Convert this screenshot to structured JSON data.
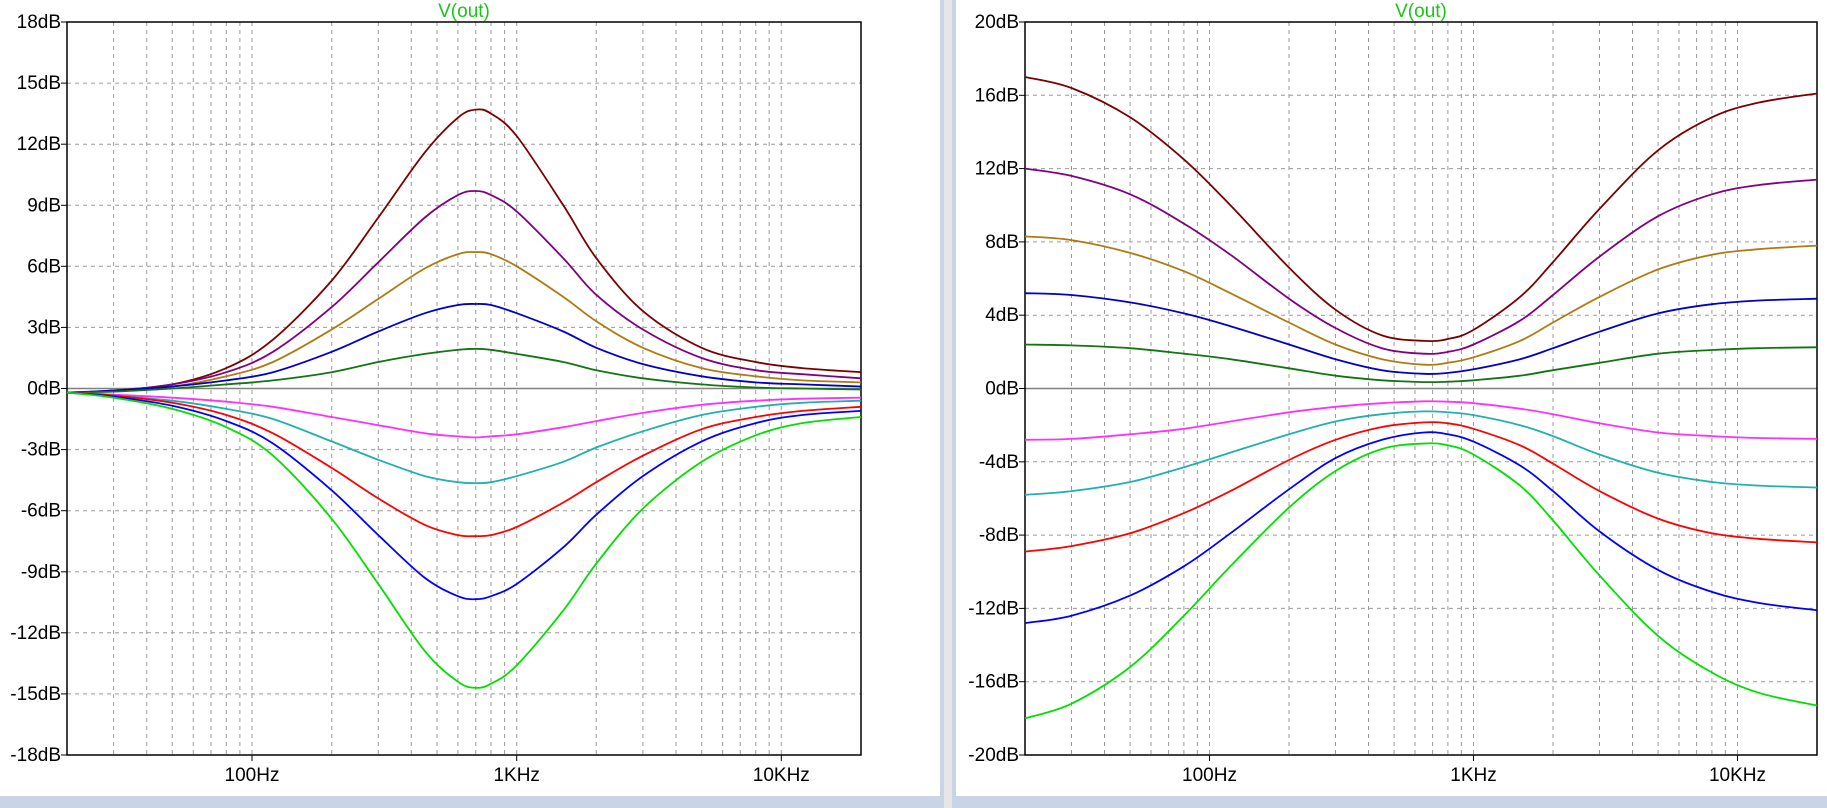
{
  "window": {
    "background_color": "#c9d5e6",
    "plot_background": "#ffffff",
    "grid_color": "#9a9a9a",
    "zero_line_color": "#808080"
  },
  "chart_data": [
    {
      "type": "line",
      "title": "V(out)",
      "title_color": "#19c519",
      "x_scale": "log",
      "xlim": [
        20,
        20000
      ],
      "ylim": [
        -18,
        18
      ],
      "x_ticks": [
        {
          "value": 100,
          "label": "100Hz"
        },
        {
          "value": 1000,
          "label": "1KHz"
        },
        {
          "value": 10000,
          "label": "10KHz"
        }
      ],
      "y_ticks": [
        {
          "value": 18,
          "label": "18dB"
        },
        {
          "value": 15,
          "label": "15dB"
        },
        {
          "value": 12,
          "label": "12dB"
        },
        {
          "value": 9,
          "label": "9dB"
        },
        {
          "value": 6,
          "label": "6dB"
        },
        {
          "value": 3,
          "label": "3dB"
        },
        {
          "value": 0,
          "label": "0dB"
        },
        {
          "value": -3,
          "label": "-3dB"
        },
        {
          "value": -6,
          "label": "-6dB"
        },
        {
          "value": -9,
          "label": "-9dB"
        },
        {
          "value": -12,
          "label": "-12dB"
        },
        {
          "value": -15,
          "label": "-15dB"
        },
        {
          "value": -18,
          "label": "-18dB"
        }
      ],
      "grid": true,
      "x": [
        20,
        30,
        50,
        80,
        120,
        200,
        300,
        450,
        600,
        700,
        800,
        1000,
        1500,
        2000,
        3000,
        5000,
        8000,
        12000,
        20000
      ],
      "series": [
        {
          "color": "#7a0000",
          "values": [
            -0.2,
            -0.1,
            0.2,
            1.0,
            2.4,
            5.3,
            8.4,
            11.6,
            13.3,
            13.7,
            13.5,
            12.4,
            9.0,
            6.4,
            3.8,
            2.0,
            1.3,
            1.0,
            0.8
          ]
        },
        {
          "color": "#800080",
          "values": [
            -0.2,
            -0.1,
            0.2,
            0.8,
            1.8,
            4.0,
            6.2,
            8.4,
            9.5,
            9.7,
            9.5,
            8.7,
            6.4,
            4.6,
            2.9,
            1.5,
            0.9,
            0.7,
            0.5
          ]
        },
        {
          "color": "#b07a10",
          "values": [
            -0.2,
            -0.1,
            0.1,
            0.6,
            1.3,
            2.9,
            4.4,
            5.9,
            6.6,
            6.7,
            6.6,
            6.0,
            4.5,
            3.3,
            2.0,
            1.0,
            0.6,
            0.4,
            0.3
          ]
        },
        {
          "color": "#0000c8",
          "values": [
            -0.2,
            -0.1,
            0.1,
            0.4,
            0.8,
            1.8,
            2.8,
            3.7,
            4.1,
            4.15,
            4.1,
            3.7,
            2.8,
            2.0,
            1.2,
            0.6,
            0.3,
            0.2,
            0.1
          ]
        },
        {
          "color": "#127512",
          "values": [
            -0.2,
            -0.15,
            0.0,
            0.2,
            0.4,
            0.8,
            1.3,
            1.7,
            1.9,
            1.95,
            1.9,
            1.7,
            1.3,
            0.9,
            0.5,
            0.2,
            0.05,
            0.0,
            -0.05
          ]
        },
        {
          "color": "#ff30ff",
          "values": [
            -0.2,
            -0.3,
            -0.45,
            -0.65,
            -0.9,
            -1.4,
            -1.8,
            -2.2,
            -2.35,
            -2.4,
            -2.35,
            -2.25,
            -1.9,
            -1.6,
            -1.2,
            -0.8,
            -0.6,
            -0.5,
            -0.45
          ]
        },
        {
          "color": "#20b0b0",
          "values": [
            -0.2,
            -0.35,
            -0.6,
            -1.0,
            -1.5,
            -2.6,
            -3.5,
            -4.3,
            -4.6,
            -4.65,
            -4.6,
            -4.3,
            -3.6,
            -2.9,
            -2.1,
            -1.3,
            -0.9,
            -0.7,
            -0.6
          ]
        },
        {
          "color": "#ff0000",
          "values": [
            -0.2,
            -0.35,
            -0.7,
            -1.3,
            -2.2,
            -3.9,
            -5.4,
            -6.7,
            -7.2,
            -7.25,
            -7.2,
            -6.8,
            -5.6,
            -4.6,
            -3.3,
            -2.0,
            -1.4,
            -1.1,
            -0.9
          ]
        },
        {
          "color": "#0000ff",
          "values": [
            -0.2,
            -0.4,
            -0.85,
            -1.6,
            -2.7,
            -5.0,
            -7.2,
            -9.3,
            -10.2,
            -10.35,
            -10.2,
            -9.6,
            -7.8,
            -6.2,
            -4.3,
            -2.6,
            -1.7,
            -1.3,
            -1.1
          ]
        },
        {
          "color": "#00e000",
          "values": [
            -0.2,
            -0.45,
            -1.0,
            -1.9,
            -3.3,
            -6.4,
            -9.6,
            -12.9,
            -14.4,
            -14.7,
            -14.5,
            -13.6,
            -10.9,
            -8.6,
            -5.9,
            -3.6,
            -2.3,
            -1.7,
            -1.4
          ]
        }
      ]
    },
    {
      "type": "line",
      "title": "V(out)",
      "title_color": "#19c519",
      "x_scale": "log",
      "xlim": [
        20,
        20000
      ],
      "ylim": [
        -20,
        20
      ],
      "x_ticks": [
        {
          "value": 100,
          "label": "100Hz"
        },
        {
          "value": 1000,
          "label": "1KHz"
        },
        {
          "value": 10000,
          "label": "10KHz"
        }
      ],
      "y_ticks": [
        {
          "value": 20,
          "label": "20dB"
        },
        {
          "value": 16,
          "label": "16dB"
        },
        {
          "value": 12,
          "label": "12dB"
        },
        {
          "value": 8,
          "label": "8dB"
        },
        {
          "value": 4,
          "label": "4dB"
        },
        {
          "value": 0,
          "label": "0dB"
        },
        {
          "value": -4,
          "label": "-4dB"
        },
        {
          "value": -8,
          "label": "-8dB"
        },
        {
          "value": -12,
          "label": "-12dB"
        },
        {
          "value": -16,
          "label": "-16dB"
        },
        {
          "value": -20,
          "label": "-20dB"
        }
      ],
      "grid": true,
      "x": [
        20,
        30,
        50,
        80,
        120,
        200,
        300,
        450,
        650,
        800,
        1000,
        1500,
        2000,
        3000,
        5000,
        8000,
        12000,
        20000
      ],
      "series": [
        {
          "color": "#7a0000",
          "values": [
            17.0,
            16.4,
            14.8,
            12.5,
            10.0,
            6.6,
            4.3,
            2.9,
            2.6,
            2.7,
            3.2,
            5.0,
            6.9,
            9.8,
            13.0,
            14.8,
            15.6,
            16.1
          ]
        },
        {
          "color": "#800080",
          "values": [
            12.0,
            11.6,
            10.6,
            9.0,
            7.3,
            4.9,
            3.3,
            2.2,
            1.9,
            2.0,
            2.4,
            3.7,
            5.1,
            7.2,
            9.4,
            10.6,
            11.1,
            11.4
          ]
        },
        {
          "color": "#b07a10",
          "values": [
            8.3,
            8.1,
            7.4,
            6.4,
            5.2,
            3.6,
            2.4,
            1.6,
            1.3,
            1.4,
            1.7,
            2.6,
            3.6,
            5.0,
            6.5,
            7.3,
            7.6,
            7.8
          ]
        },
        {
          "color": "#0000c8",
          "values": [
            5.2,
            5.1,
            4.7,
            4.1,
            3.4,
            2.4,
            1.6,
            1.0,
            0.8,
            0.85,
            1.05,
            1.6,
            2.2,
            3.1,
            4.1,
            4.6,
            4.8,
            4.9
          ]
        },
        {
          "color": "#127512",
          "values": [
            2.4,
            2.35,
            2.2,
            1.9,
            1.6,
            1.1,
            0.7,
            0.45,
            0.35,
            0.37,
            0.45,
            0.7,
            1.0,
            1.4,
            1.9,
            2.1,
            2.2,
            2.25
          ]
        },
        {
          "color": "#ff30ff",
          "values": [
            -2.8,
            -2.75,
            -2.5,
            -2.2,
            -1.8,
            -1.3,
            -1.0,
            -0.8,
            -0.7,
            -0.72,
            -0.8,
            -1.1,
            -1.4,
            -1.9,
            -2.4,
            -2.6,
            -2.7,
            -2.75
          ]
        },
        {
          "color": "#20b0b0",
          "values": [
            -5.8,
            -5.6,
            -5.1,
            -4.3,
            -3.5,
            -2.5,
            -1.8,
            -1.4,
            -1.25,
            -1.3,
            -1.45,
            -2.0,
            -2.6,
            -3.6,
            -4.6,
            -5.1,
            -5.3,
            -5.4
          ]
        },
        {
          "color": "#ff0000",
          "values": [
            -8.9,
            -8.6,
            -7.9,
            -6.8,
            -5.6,
            -3.9,
            -2.8,
            -2.1,
            -1.85,
            -1.9,
            -2.2,
            -3.1,
            -4.1,
            -5.6,
            -7.1,
            -7.9,
            -8.2,
            -8.4
          ]
        },
        {
          "color": "#0000ff",
          "values": [
            -12.8,
            -12.4,
            -11.3,
            -9.7,
            -7.9,
            -5.5,
            -3.8,
            -2.8,
            -2.4,
            -2.5,
            -2.9,
            -4.2,
            -5.6,
            -7.8,
            -9.9,
            -11.1,
            -11.7,
            -12.1
          ]
        },
        {
          "color": "#00e000",
          "values": [
            -18.0,
            -17.2,
            -15.2,
            -12.4,
            -9.7,
            -6.5,
            -4.5,
            -3.3,
            -3.0,
            -3.1,
            -3.6,
            -5.3,
            -7.2,
            -10.2,
            -13.5,
            -15.5,
            -16.6,
            -17.3
          ]
        }
      ]
    }
  ]
}
